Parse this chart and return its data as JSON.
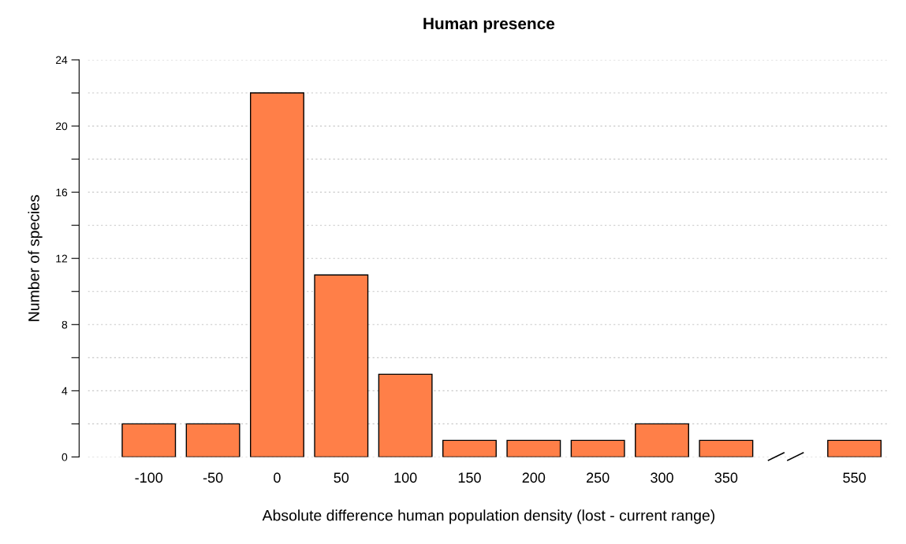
{
  "chart_data": {
    "type": "bar",
    "title": "Human presence",
    "xlabel": "Absolute difference human population density (lost - current range)",
    "ylabel": "Number of species",
    "categories": [
      "-100",
      "-50",
      "0",
      "50",
      "100",
      "150",
      "200",
      "250",
      "300",
      "350",
      null,
      "550"
    ],
    "values": [
      2,
      2,
      22,
      11,
      5,
      1,
      1,
      1,
      2,
      1,
      null,
      1
    ],
    "color": "#ff7f48",
    "ylim": [
      0,
      24
    ],
    "yticks": [
      0,
      {
        "value": 2,
        "label": null
      },
      4,
      {
        "value": 6,
        "label": null
      },
      8,
      {
        "value": 10,
        "label": null
      },
      12,
      {
        "value": 14,
        "label": null
      },
      16,
      {
        "value": 18,
        "label": null
      },
      20,
      {
        "value": 22,
        "label": null
      },
      24
    ],
    "grid": "y"
  }
}
